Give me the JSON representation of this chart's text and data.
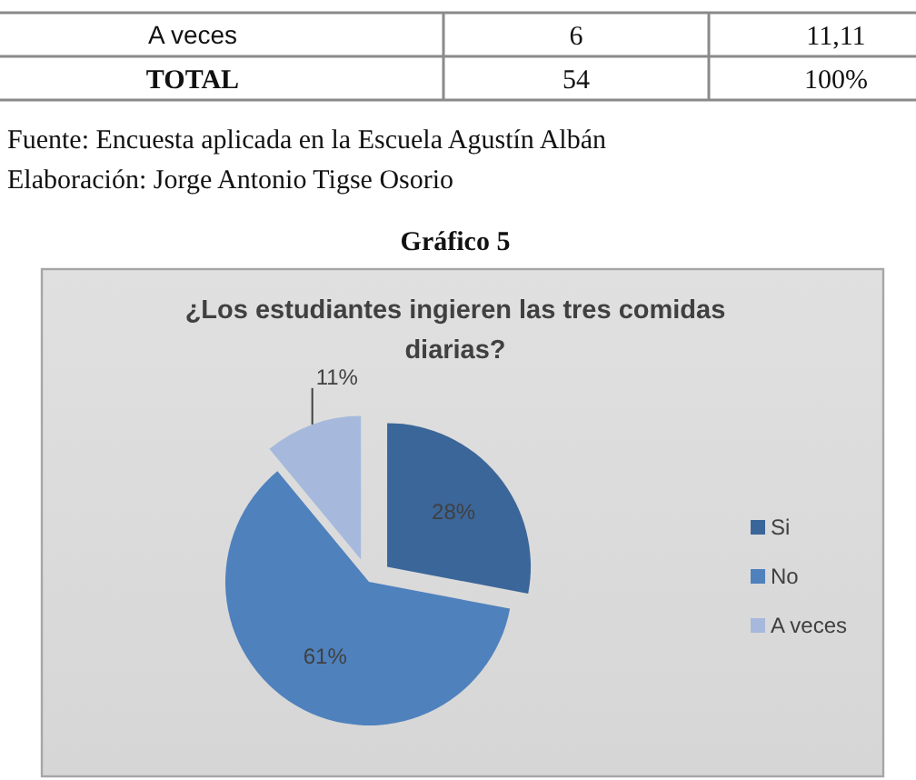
{
  "chart_data": [
    {
      "type": "other",
      "data_labels": true,
      "categories": [
        "A veces",
        "TOTAL"
      ],
      "series": [
        {
          "values": [
            6,
            54
          ]
        },
        {
          "values": [
            null,
            null
          ],
          "value_labels": [
            "11,11",
            "100%"
          ]
        }
      ],
      "annotations": [
        "Fuente: Encuesta aplicada en la Escuela Agustín Albán",
        "Elaboración: Jorge Antonio Tigse Osorio"
      ]
    },
    {
      "type": "pie",
      "title": "¿Los estudiantes ingieren las tres comidas diarias?",
      "annotations": [
        "Gráfico 5"
      ],
      "categories": [
        "Si",
        "No",
        "A veces"
      ],
      "values": [
        28,
        61,
        11
      ],
      "colors": [
        "#3b6699",
        "#4f81bd",
        "#a6b9dc"
      ],
      "value_labels": [
        "28%",
        "61%",
        "11%"
      ],
      "legend": "right"
    }
  ]
}
